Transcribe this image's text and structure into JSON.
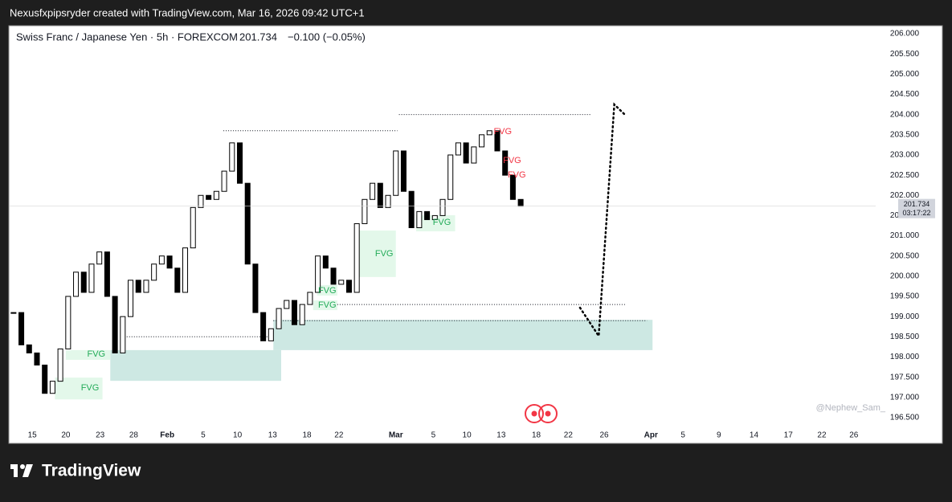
{
  "header": "Nexusfxpipsryder created with TradingView.com, Mar 16, 2026 09:42 UTC+1",
  "footer_logo": "TradingView",
  "chart_data": {
    "type": "candlestick",
    "title": "Swiss Franc / Japanese Yen · 5h · FOREXCOM",
    "last_price": 201.734,
    "change_text": "−0.100 (−0.05%)",
    "countdown": "03:17:22",
    "watermark": "@Nephew_Sam_",
    "closes": [
      199.1,
      198.3,
      198.1,
      197.8,
      197.1,
      197.4,
      198.2,
      199.5,
      200.1,
      199.6,
      200.3,
      200.6,
      199.5,
      198.1,
      199.0,
      199.9,
      199.6,
      199.9,
      200.3,
      200.5,
      200.2,
      199.6,
      200.7,
      201.7,
      202.0,
      201.9,
      202.1,
      202.6,
      203.3,
      202.3,
      200.3,
      199.1,
      198.4,
      198.7,
      199.2,
      199.4,
      198.8,
      199.3,
      199.6,
      200.5,
      200.2,
      199.8,
      199.9,
      199.6,
      201.3,
      201.9,
      202.3,
      201.7,
      202.0,
      203.1,
      202.1,
      201.2,
      201.6,
      201.4,
      201.5,
      201.9,
      203.0,
      203.3,
      202.8,
      203.2,
      203.5,
      203.6,
      203.1,
      202.5,
      201.9,
      201.734
    ],
    "up_color": "#ffffff",
    "down_color": "#000000",
    "xlim": [
      0,
      111
    ],
    "xticks": [
      {
        "value": 2.9,
        "label": "15"
      },
      {
        "value": 7.2,
        "label": "20"
      },
      {
        "value": 11.6,
        "label": "23"
      },
      {
        "value": 15.9,
        "label": "28"
      },
      {
        "value": 20.2,
        "label": "Feb"
      },
      {
        "value": 24.8,
        "label": "5"
      },
      {
        "value": 29.2,
        "label": "10"
      },
      {
        "value": 33.7,
        "label": "13"
      },
      {
        "value": 38.1,
        "label": "18"
      },
      {
        "value": 42.2,
        "label": "22"
      },
      {
        "value": 49.5,
        "label": "Mar"
      },
      {
        "value": 54.3,
        "label": "5"
      },
      {
        "value": 58.6,
        "label": "10"
      },
      {
        "value": 63.0,
        "label": "13"
      },
      {
        "value": 67.5,
        "label": "18"
      },
      {
        "value": 71.6,
        "label": "22"
      },
      {
        "value": 76.2,
        "label": "26"
      },
      {
        "value": 82.2,
        "label": "Apr"
      },
      {
        "value": 86.3,
        "label": "5"
      },
      {
        "value": 90.9,
        "label": "9"
      },
      {
        "value": 95.4,
        "label": "14"
      },
      {
        "value": 99.8,
        "label": "17"
      },
      {
        "value": 104.1,
        "label": "22"
      },
      {
        "value": 108.2,
        "label": "26"
      }
    ],
    "ylim": [
      196.2,
      206.2
    ],
    "yticks": [
      {
        "value": 196.5,
        "label": "196.500"
      },
      {
        "value": 197,
        "label": "197.000"
      },
      {
        "value": 197.5,
        "label": "197.500"
      },
      {
        "value": 198,
        "label": "198.000"
      },
      {
        "value": 198.5,
        "label": "198.500"
      },
      {
        "value": 199,
        "label": "199.000"
      },
      {
        "value": 199.5,
        "label": "199.500"
      },
      {
        "value": 200,
        "label": "200.000"
      },
      {
        "value": 200.5,
        "label": "200.500"
      },
      {
        "value": 201,
        "label": "201.000"
      },
      {
        "value": 201.5,
        "label": "201.500"
      },
      {
        "value": 202,
        "label": "202.000"
      },
      {
        "value": 202.5,
        "label": "202.500"
      },
      {
        "value": 203,
        "label": "203.000"
      },
      {
        "value": 203.5,
        "label": "203.500"
      },
      {
        "value": 204,
        "label": "204.000"
      },
      {
        "value": 204.5,
        "label": "204.500"
      },
      {
        "value": 205,
        "label": "205.000"
      },
      {
        "value": 205.5,
        "label": "205.500"
      },
      {
        "value": 206,
        "label": "206.000"
      }
    ],
    "zones": [
      {
        "x": [
          33.8,
          82.4
        ],
        "y": [
          198.17,
          198.92
        ],
        "color": "#cde8e3"
      },
      {
        "x": [
          12.9,
          34.8
        ],
        "y": [
          197.41,
          198.17
        ],
        "color": "#cde8e3"
      },
      {
        "x": [
          44.4,
          49.5
        ],
        "y": [
          199.98,
          201.13
        ],
        "color": "#e3f8ea"
      },
      {
        "x": [
          5.8,
          11.9
        ],
        "y": [
          196.95,
          197.49
        ],
        "color": "#e3f8ea"
      },
      {
        "x": [
          7.2,
          12.9
        ],
        "y": [
          197.93,
          198.17
        ],
        "color": "#e3f8ea"
      },
      {
        "x": [
          52.1,
          57.1
        ],
        "y": [
          201.11,
          201.51
        ],
        "color": "#e3f8ea"
      },
      {
        "x": [
          39.4,
          42.0
        ],
        "y": [
          199.52,
          199.78
        ],
        "color": "#e3f8ea"
      },
      {
        "x": [
          38.9,
          42.0
        ],
        "y": [
          199.16,
          199.4
        ],
        "color": "#e3f8ea"
      }
    ],
    "levels": [
      {
        "y": 203.6,
        "x": [
          27.4,
          49.7
        ]
      },
      {
        "y": 204.0,
        "x": [
          49.9,
          74.5
        ]
      },
      {
        "y": 199.3,
        "x": [
          42.0,
          78.9
        ]
      },
      {
        "y": 198.9,
        "x": [
          33.8,
          81.7
        ]
      },
      {
        "y": 198.5,
        "x": [
          14.7,
          33.8
        ]
      }
    ],
    "annotations": [
      {
        "text": "FVG",
        "x": 48.0,
        "y": 200.55,
        "color": "#22ab58"
      },
      {
        "text": "FVG",
        "x": 11.1,
        "y": 198.07,
        "color": "#22ab58"
      },
      {
        "text": "FVG",
        "x": 10.3,
        "y": 197.23,
        "color": "#22ab58"
      },
      {
        "text": "FVG",
        "x": 55.4,
        "y": 201.33,
        "color": "#22ab58"
      },
      {
        "text": "FVG",
        "x": 40.7,
        "y": 199.64,
        "color": "#22ab58"
      },
      {
        "text": "FVG",
        "x": 40.7,
        "y": 199.28,
        "color": "#22ab58"
      },
      {
        "text": "FVG",
        "x": 63.2,
        "y": 203.57,
        "color": "#f23645"
      },
      {
        "text": "FVG",
        "x": 64.4,
        "y": 202.86,
        "color": "#f23645"
      },
      {
        "text": "FVG",
        "x": 65.0,
        "y": 202.5,
        "color": "#f23645"
      }
    ],
    "projection": {
      "x": [
        73.1,
        75.5,
        77.5,
        78.9
      ],
      "y": [
        199.22,
        198.52,
        204.25,
        203.99
      ]
    }
  }
}
